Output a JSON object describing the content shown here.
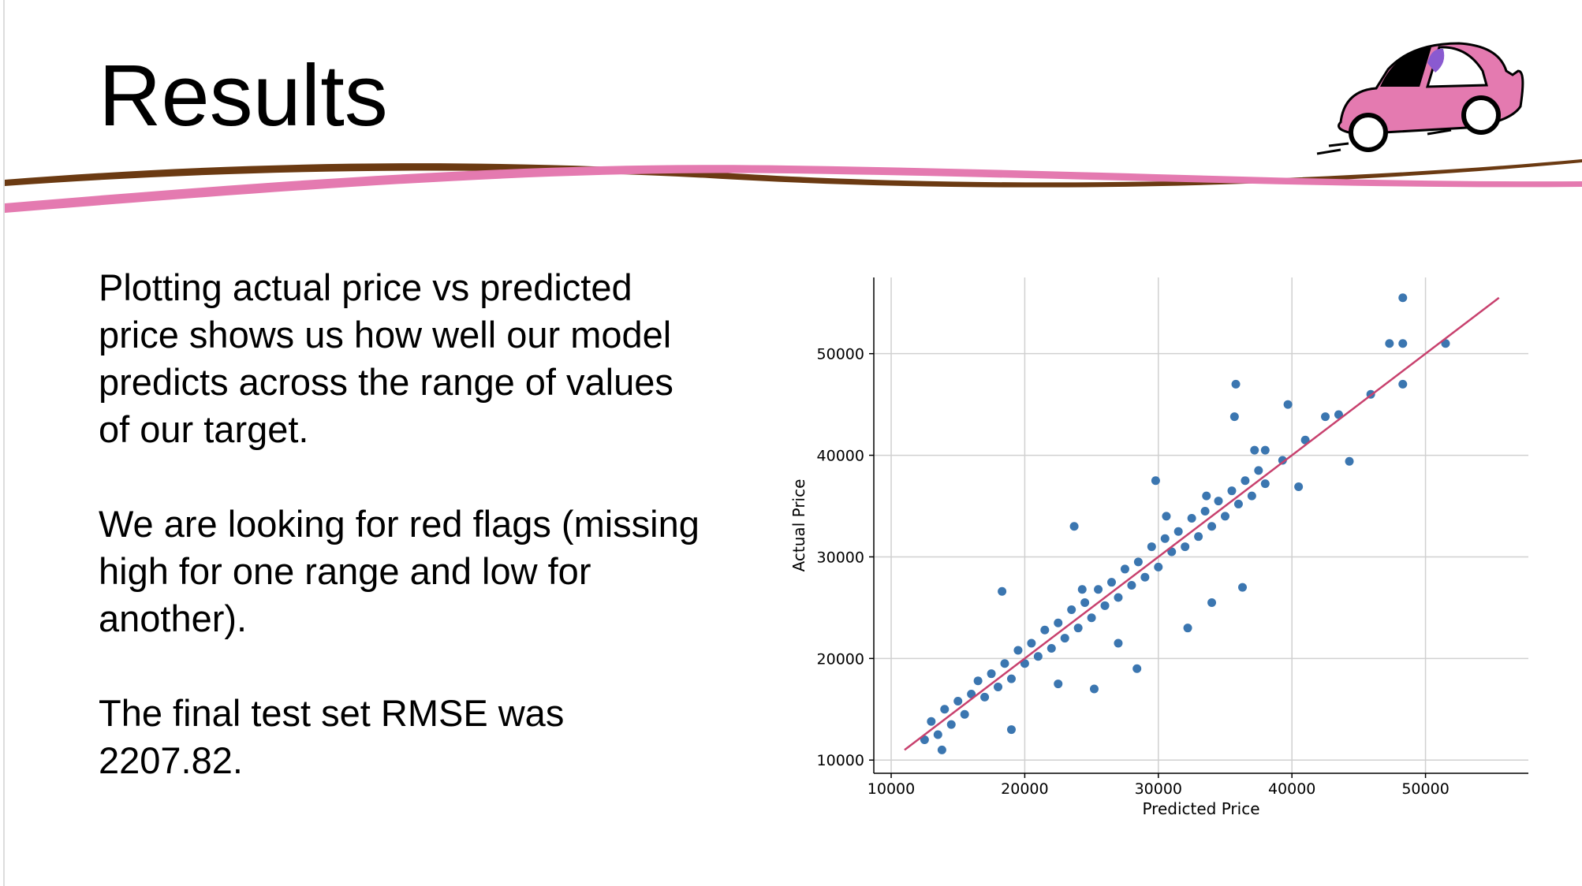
{
  "header": {
    "title": "Results"
  },
  "body": {
    "paragraphs": [
      [
        "Plotting actual price vs predicted",
        "price shows us how well our model",
        "predicts across the range of values",
        "of our target."
      ],
      [
        "We are looking for red flags (missing",
        "high for one range and low for",
        "another)."
      ],
      [
        "The final test set RMSE was",
        "2207.82."
      ]
    ]
  },
  "chart_data": {
    "type": "scatter",
    "x_label": "Predicted Price",
    "y_label": "Actual Price",
    "xlim": [
      8700,
      57700
    ],
    "ylim": [
      8700,
      57500
    ],
    "xticks": [
      10000,
      20000,
      30000,
      40000,
      50000
    ],
    "yticks": [
      10000,
      20000,
      30000,
      40000,
      50000
    ],
    "grid": true,
    "series": [
      {
        "color": "#3b76b0",
        "x": [
          12500,
          13000,
          13500,
          14000,
          14500,
          15000,
          15500,
          16000,
          16500,
          17000,
          17500,
          18000,
          18500,
          19000,
          19500,
          20000,
          20500,
          21000,
          21500,
          22000,
          22500,
          23000,
          23500,
          24000,
          24500,
          25000,
          25500,
          26000,
          26500,
          27000,
          27500,
          28000,
          28500,
          29000,
          29500,
          30000,
          30500,
          31000,
          31500,
          32000,
          32500,
          33000,
          33500,
          34000,
          34500,
          35000,
          35500,
          36000,
          36500,
          37000,
          37500,
          38000,
          13800,
          18300,
          19000,
          23700,
          25200,
          27000,
          28400,
          29800,
          33600,
          32200,
          34000,
          36300,
          35800,
          35700,
          39700,
          40500,
          39300,
          41000,
          42500,
          43500,
          44300,
          45900,
          48300,
          47300,
          48300,
          51500,
          48300,
          37200,
          38000,
          24300,
          22500,
          30600
        ],
        "y": [
          12000,
          13800,
          12500,
          15000,
          13500,
          15800,
          14500,
          16500,
          17800,
          16200,
          18500,
          17200,
          19500,
          18000,
          20800,
          19500,
          21500,
          20200,
          22800,
          21000,
          23500,
          22000,
          24800,
          23000,
          25500,
          24000,
          26800,
          25200,
          27500,
          26000,
          28800,
          27200,
          29500,
          28000,
          31000,
          29000,
          31800,
          30500,
          32500,
          31000,
          33800,
          32000,
          34500,
          33000,
          35500,
          34000,
          36500,
          35200,
          37500,
          36000,
          38500,
          37200,
          11000,
          26600,
          13000,
          33000,
          17000,
          21500,
          19000,
          37500,
          36000,
          23000,
          25500,
          27000,
          47000,
          43800,
          45000,
          36900,
          39500,
          41500,
          43800,
          44000,
          39400,
          46000,
          55500,
          51000,
          51000,
          51000,
          47000,
          40500,
          40500,
          26800,
          17500,
          34000
        ]
      }
    ],
    "reference_line": {
      "color": "#c8416e",
      "x": [
        11000,
        55500
      ],
      "y": [
        11000,
        55500
      ]
    }
  }
}
